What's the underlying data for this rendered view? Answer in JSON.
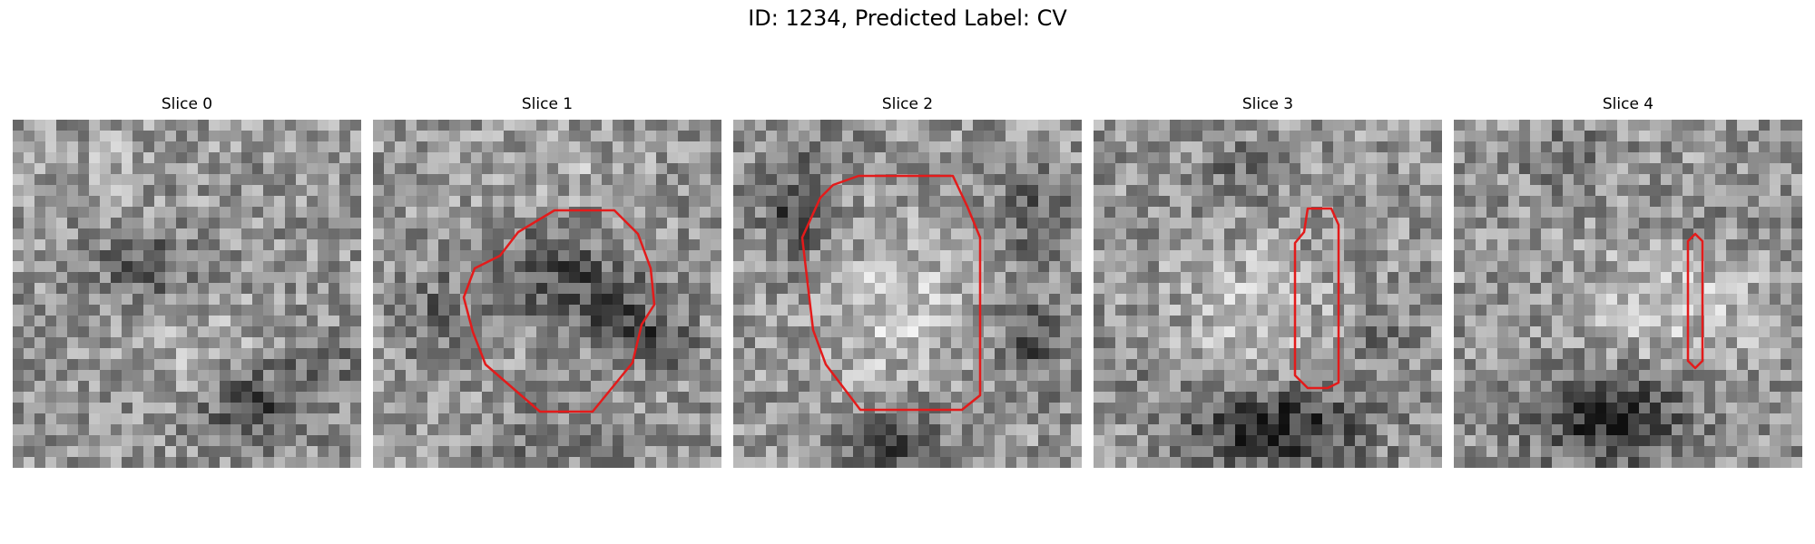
{
  "figure": {
    "title": "ID: 1234, Predicted Label: CV"
  },
  "colors": {
    "contour": "#e31b1b",
    "background": "#ffffff"
  },
  "slices": [
    {
      "title": "Slice 0",
      "has_contour": false
    },
    {
      "title": "Slice 1",
      "has_contour": true
    },
    {
      "title": "Slice 2",
      "has_contour": true
    },
    {
      "title": "Slice 3",
      "has_contour": true
    },
    {
      "title": "Slice 4",
      "has_contour": true
    }
  ]
}
